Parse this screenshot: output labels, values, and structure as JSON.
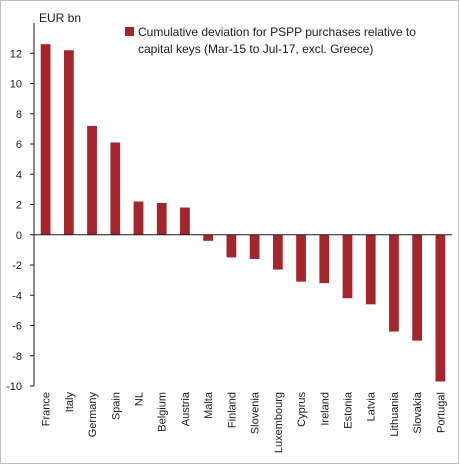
{
  "chart_data": {
    "type": "bar",
    "ylabel": "EUR bn",
    "ylim": [
      -10,
      14
    ],
    "yticks": [
      -10,
      -8,
      -6,
      -4,
      -2,
      0,
      2,
      4,
      6,
      8,
      10,
      12
    ],
    "grid": false,
    "legend_position": "top-right",
    "colors": {
      "bar": "#a4262c",
      "axis": "#1a1a1a",
      "frame": "#bfbfbf"
    },
    "categories": [
      "France",
      "Italy",
      "Germany",
      "Spain",
      "NL",
      "Belgium",
      "Austria",
      "Malta",
      "Finland",
      "Slovenia",
      "Luxembourg",
      "Cyprus",
      "Ireland",
      "Estonia",
      "Latvia",
      "Lithuania",
      "Slovakia",
      "Portugal"
    ],
    "series": [
      {
        "name": "Cumulative deviation for PSPP purchases relative to capital keys (Mar-15 to Jul-17, excl. Greece)",
        "legend_lines": [
          "Cumulative deviation for PSPP purchases relative to",
          "capital keys (Mar-15 to Jul-17, excl. Greece)"
        ],
        "values": [
          12.6,
          12.2,
          7.2,
          6.1,
          2.2,
          2.1,
          1.8,
          -0.4,
          -1.5,
          -1.6,
          -2.3,
          -3.1,
          -3.2,
          -4.2,
          -4.6,
          -6.4,
          -7.0,
          -9.7
        ]
      }
    ]
  }
}
